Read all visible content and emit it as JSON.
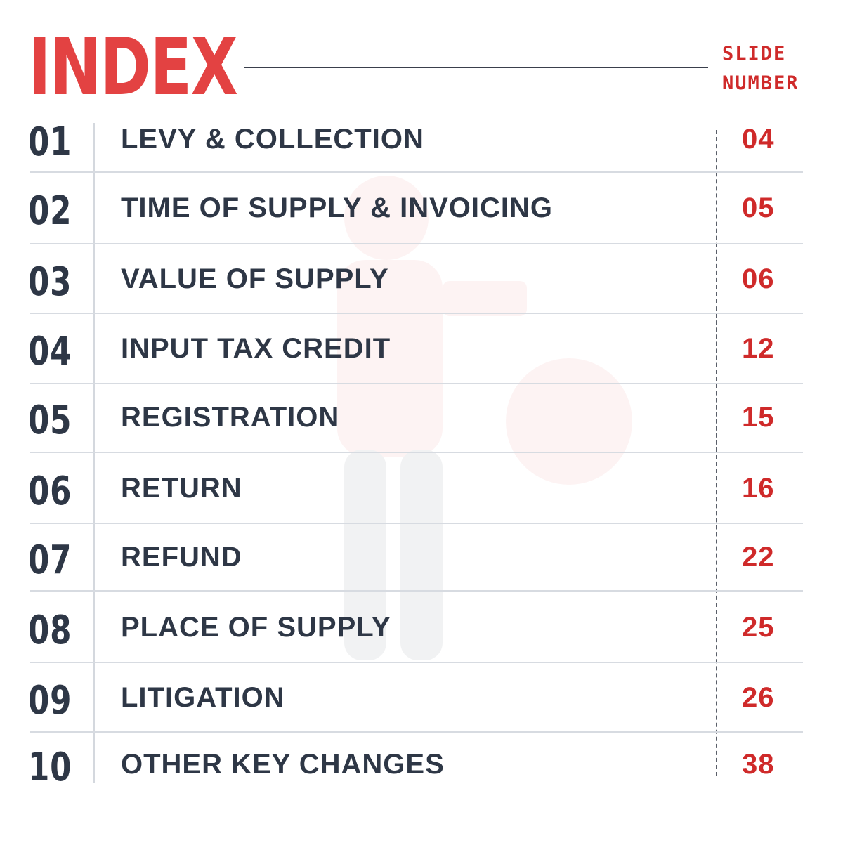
{
  "header": {
    "title": "INDEX",
    "slide_label_line1": "SLIDE",
    "slide_label_line2": "NUMBER"
  },
  "colors": {
    "accent_red": "#e34242",
    "page_number_red": "#cf2a2a",
    "text_dark": "#2e3746"
  },
  "rows": [
    {
      "num": "01",
      "label": "LEVY & COLLECTION",
      "slide": "04"
    },
    {
      "num": "02",
      "label": "TIME OF SUPPLY & INVOICING",
      "slide": "05"
    },
    {
      "num": "03",
      "label": "VALUE OF SUPPLY",
      "slide": "06"
    },
    {
      "num": "04",
      "label": "INPUT TAX CREDIT",
      "slide": "12"
    },
    {
      "num": "05",
      "label": "REGISTRATION",
      "slide": "15"
    },
    {
      "num": "06",
      "label": "RETURN",
      "slide": "16"
    },
    {
      "num": "07",
      "label": "REFUND",
      "slide": "22"
    },
    {
      "num": "08",
      "label": "PLACE OF SUPPLY",
      "slide": "25"
    },
    {
      "num": "09",
      "label": "LITIGATION",
      "slide": "26"
    },
    {
      "num": "10",
      "label": "OTHER KEY CHANGES",
      "slide": "38"
    }
  ]
}
